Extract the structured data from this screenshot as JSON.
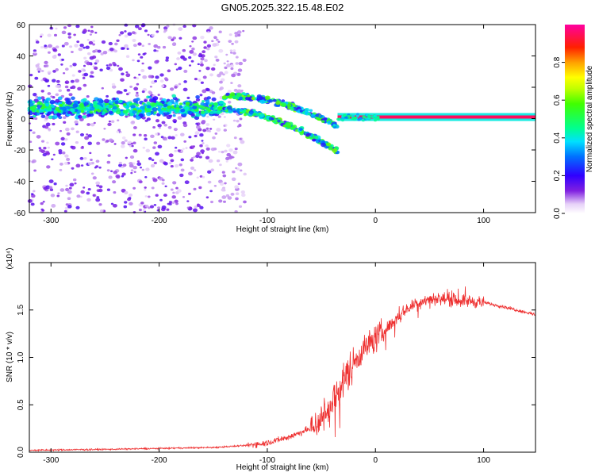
{
  "title": "GN05.2025.322.15.48.E02",
  "colors": {
    "snr_line": "#ee3030",
    "axis": "#000000",
    "spec_low": "#e8d8f8",
    "spec_mid": "#6a0ad0"
  },
  "chart_data": [
    {
      "id": "spectrogram",
      "type": "heatmap",
      "xlabel": "Height of straight line (km)",
      "ylabel": "Frequency (Hz)",
      "xlim": [
        -320,
        148
      ],
      "ylim": [
        -60,
        60
      ],
      "xticks": [
        -300,
        -200,
        -100,
        0,
        100
      ],
      "yticks": [
        -60,
        -40,
        -20,
        0,
        20,
        40,
        60
      ],
      "colorbar": {
        "label": "Normalized spectral amplitude",
        "range": [
          0,
          1
        ],
        "ticks": [
          0.0,
          0.2,
          0.4,
          0.6,
          0.8
        ],
        "tick_labels": [
          "0.0",
          "0.2",
          "0.4",
          "0.6",
          "0.8"
        ]
      },
      "features": [
        {
          "name": "noise-scatter",
          "x_range": [
            -320,
            -140
          ],
          "y_range": [
            -60,
            60
          ],
          "amplitude": 0.1
        },
        {
          "name": "main-band",
          "x_range": [
            -320,
            -140
          ],
          "center_hz": 7,
          "width_hz": 12,
          "amplitude": 0.3
        },
        {
          "name": "descending-trace",
          "x_range": [
            -140,
            -35
          ],
          "start_hz": 10,
          "end_hz": -15,
          "amplitude": 0.45
        },
        {
          "name": "carrier-line",
          "x_range": [
            -35,
            148
          ],
          "center_hz": 1,
          "amplitude": 0.95
        }
      ]
    },
    {
      "id": "snr",
      "type": "line",
      "xlabel": "Height of straight line (km)",
      "ylabel": "SNR (10 * v/v)",
      "scale_label": "(x10⁴)",
      "xlim": [
        -320,
        148
      ],
      "ylim": [
        0,
        2.0
      ],
      "xticks": [
        -300,
        -200,
        -100,
        0,
        100
      ],
      "yticks": [
        0.0,
        0.5,
        1.0,
        1.5
      ],
      "ytick_labels": [
        "0.0",
        "0.5",
        "1.0",
        "1.5"
      ],
      "series": [
        {
          "name": "SNR",
          "x": [
            -320,
            -250,
            -200,
            -150,
            -120,
            -100,
            -80,
            -60,
            -50,
            -40,
            -30,
            -20,
            -10,
            0,
            10,
            20,
            30,
            40,
            50,
            60,
            80,
            100,
            120,
            148
          ],
          "y": [
            0.02,
            0.03,
            0.04,
            0.05,
            0.07,
            0.1,
            0.16,
            0.25,
            0.35,
            0.5,
            0.75,
            0.95,
            1.1,
            1.2,
            1.3,
            1.42,
            1.52,
            1.58,
            1.62,
            1.62,
            1.6,
            1.58,
            1.53,
            1.45
          ]
        }
      ]
    }
  ]
}
